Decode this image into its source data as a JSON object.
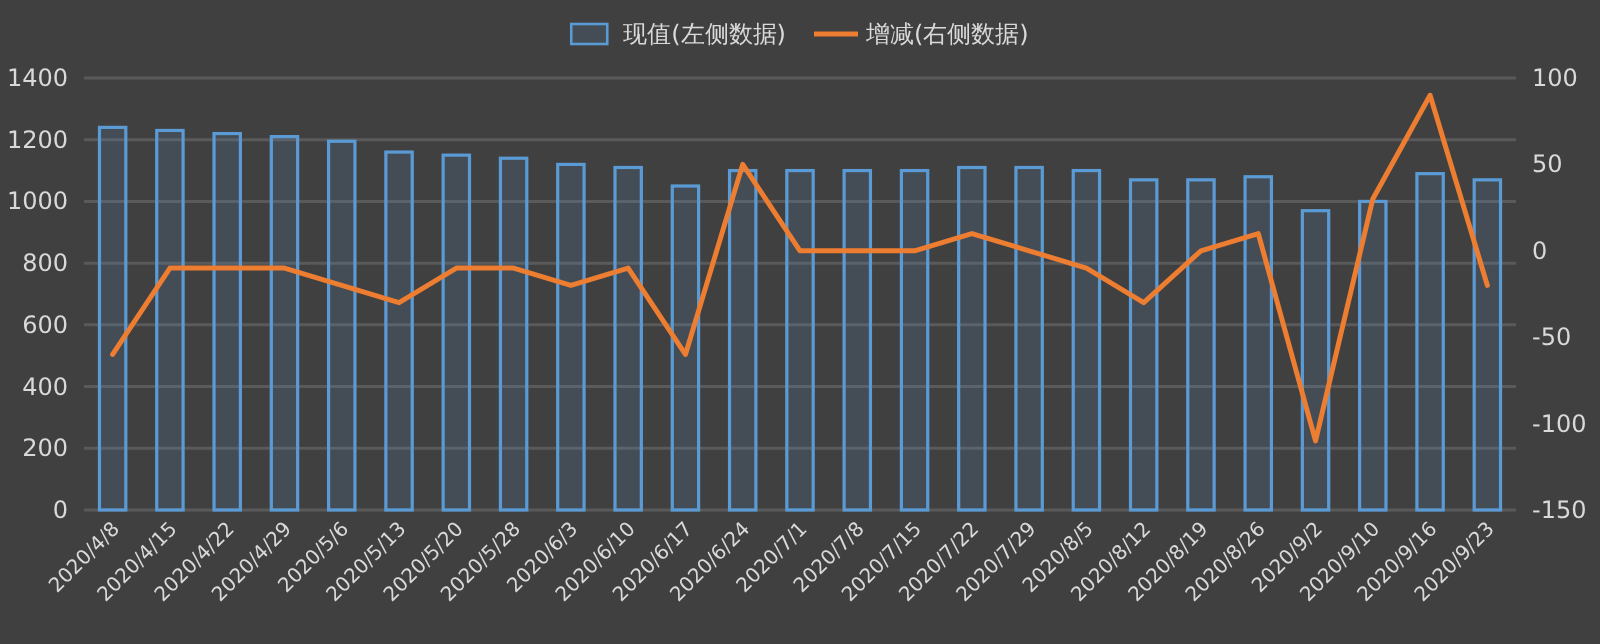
{
  "chart_data": {
    "type": "bar",
    "categories": [
      "2020/4/8",
      "2020/4/15",
      "2020/4/22",
      "2020/4/29",
      "2020/5/6",
      "2020/5/13",
      "2020/5/20",
      "2020/5/28",
      "2020/6/3",
      "2020/6/10",
      "2020/6/17",
      "2020/6/24",
      "2020/7/1",
      "2020/7/8",
      "2020/7/15",
      "2020/7/22",
      "2020/7/29",
      "2020/8/5",
      "2020/8/12",
      "2020/8/19",
      "2020/8/26",
      "2020/9/2",
      "2020/9/10",
      "2020/9/16",
      "2020/9/23"
    ],
    "series": [
      {
        "name": "现值(左侧数据)",
        "color": "#5b9bd5",
        "values": [
          1240,
          1230,
          1220,
          1210,
          1195,
          1160,
          1150,
          1140,
          1120,
          1110,
          1050,
          1100,
          1100,
          1100,
          1100,
          1110,
          1110,
          1100,
          1070,
          1070,
          1080,
          970,
          1000,
          1090,
          1070
        ]
      },
      {
        "name": "增减(右侧数据)",
        "type": "line",
        "axis": "y2",
        "color": "#ed7d31",
        "values": [
          -60,
          -10,
          -10,
          -10,
          -20,
          -30,
          -10,
          -10,
          -20,
          -10,
          -60,
          50,
          0,
          0,
          0,
          10,
          0,
          -10,
          -30,
          0,
          10,
          -110,
          30,
          90,
          -20
        ]
      }
    ],
    "ylim": [
      0,
      1400
    ],
    "yticks": [
      0,
      200,
      400,
      600,
      800,
      1000,
      1200,
      1400
    ],
    "y2lim": [
      -150,
      100
    ],
    "y2ticks": [
      -150,
      -100,
      -50,
      0,
      50,
      100
    ],
    "grid": "y",
    "legend": "top",
    "marker": "none",
    "line_style": "solid"
  }
}
